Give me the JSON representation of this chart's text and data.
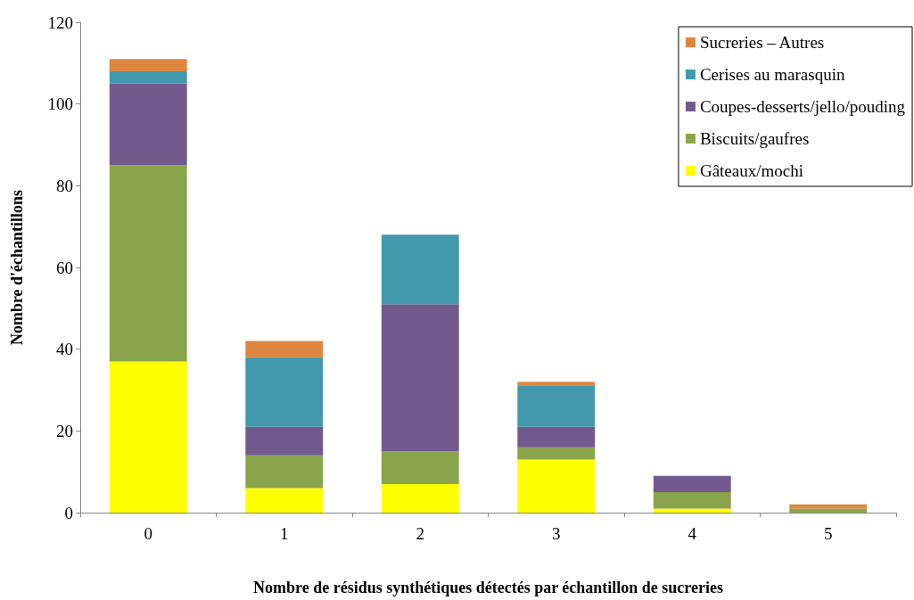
{
  "chart_data": {
    "type": "bar",
    "stacked": true,
    "xlabel": "Nombre de résidus synthétiques détectés par échantillon de sucreries",
    "ylabel": "Nombre d'échantillons",
    "categories": [
      "0",
      "1",
      "2",
      "3",
      "4",
      "5"
    ],
    "series": [
      {
        "name": "Gâteaux/mochi",
        "color": "#ffff00",
        "values": [
          37,
          6,
          7,
          13,
          1,
          0
        ]
      },
      {
        "name": "Biscuits/gaufres",
        "color": "#8aa44c",
        "values": [
          48,
          8,
          8,
          3,
          4,
          1
        ]
      },
      {
        "name": "Coupes-desserts/jello/pouding",
        "color": "#725a8e",
        "values": [
          20,
          7,
          36,
          5,
          4,
          0
        ]
      },
      {
        "name": "Cerises au marasquin",
        "color": "#4299ad",
        "values": [
          3,
          17,
          17,
          10,
          0,
          0
        ]
      },
      {
        "name": "Sucreries – Autres",
        "color": "#dd8640",
        "values": [
          3,
          4,
          0,
          1,
          0,
          1
        ]
      }
    ],
    "ylim": [
      0,
      120
    ],
    "yticks": [
      0,
      20,
      40,
      60,
      80,
      100,
      120
    ],
    "grid": false,
    "legend": "top right"
  }
}
